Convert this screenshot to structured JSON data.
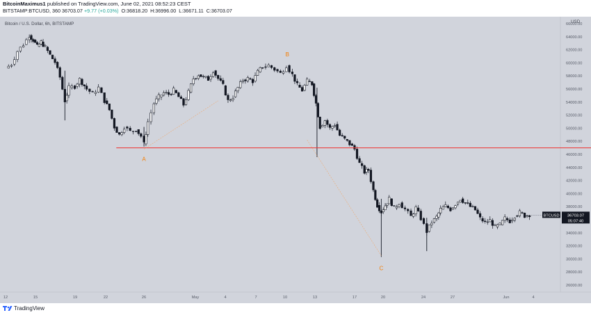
{
  "header": {
    "author": "BitcoinMaximus1",
    "publish_text": "published on TradingView.com, June 02, 2021 08:52:23 CEST",
    "symbol_line": "BITSTAMP:BTCUSD, 360",
    "last": "36703.07",
    "change": "+9.77 (+0.03%)",
    "open": "O:36818.20",
    "high": "H:36996.00",
    "low": "L:36671.11",
    "close": "C:36703.07"
  },
  "footer": {
    "brand": "TradingView"
  },
  "colors": {
    "bg": "#d1d4dc",
    "candle": "#131722",
    "support_line": "#f0312f",
    "wave_label": "#f57c00",
    "diag": "#f5a05a"
  },
  "chart_data": {
    "type": "candlestick",
    "title": "Bitcoin / U.S. Dollar, 6h, BITSTAMP",
    "ylabel": "USD",
    "ylim": [
      24500,
      68500
    ],
    "y_ticks": [
      26000,
      28000,
      30000,
      32000,
      34000,
      36000,
      38000,
      40000,
      42000,
      44000,
      46000,
      48000,
      50000,
      52000,
      54000,
      56000,
      58000,
      60000,
      62000,
      64000,
      66000
    ],
    "x_tick_labels": [
      "12",
      "15",
      "19",
      "22",
      "26",
      "May",
      "4",
      "7",
      "10",
      "13",
      "17",
      "20",
      "24",
      "27",
      "Jun",
      "4"
    ],
    "price_label": {
      "symbol": "BTCUSD",
      "price": "36703.07",
      "countdown": "05:07:40",
      "value": 36703.07
    },
    "horizontal_line": {
      "value": 47000,
      "from_day": 23.2,
      "to_day": 83.6,
      "color": "#f0312f"
    },
    "diagonals": [
      {
        "from": {
          "day": 26,
          "value": 46800
        },
        "to": {
          "day": 33.5,
          "value": 54200
        }
      },
      {
        "from": {
          "day": 42.5,
          "value": 48200
        },
        "to": {
          "day": 50,
          "value": 30500
        }
      }
    ],
    "wave_labels": [
      {
        "text": "A",
        "day": 26,
        "value": 45000
      },
      {
        "text": "B",
        "day": 40.5,
        "value": 61000
      },
      {
        "text": "C",
        "day": 50,
        "value": 28300
      }
    ],
    "path_points": [
      [
        12,
        59200
      ],
      [
        12.6,
        59800
      ],
      [
        13.2,
        61800
      ],
      [
        13.8,
        62800
      ],
      [
        14.4,
        64200
      ],
      [
        14.8,
        63500
      ],
      [
        15.2,
        62500
      ],
      [
        15.6,
        63200
      ],
      [
        16,
        62400
      ],
      [
        16.5,
        61200
      ],
      [
        17,
        60100
      ],
      [
        17.5,
        57800
      ],
      [
        18,
        54200
      ],
      [
        18.4,
        56200
      ],
      [
        19,
        56400
      ],
      [
        19.5,
        57500
      ],
      [
        20.2,
        56000
      ],
      [
        20.8,
        55300
      ],
      [
        21.4,
        56200
      ],
      [
        22,
        54200
      ],
      [
        22.5,
        52800
      ],
      [
        23,
        50200
      ],
      [
        23.5,
        49000
      ],
      [
        24,
        50200
      ],
      [
        24.6,
        49500
      ],
      [
        25.2,
        49800
      ],
      [
        25.7,
        48800
      ],
      [
        26,
        47600
      ],
      [
        26.4,
        51000
      ],
      [
        27,
        53800
      ],
      [
        27.5,
        54800
      ],
      [
        28,
        55400
      ],
      [
        28.5,
        55200
      ],
      [
        29,
        55800
      ],
      [
        29.5,
        54800
      ],
      [
        30,
        53600
      ],
      [
        30.5,
        55500
      ],
      [
        31,
        57600
      ],
      [
        31.5,
        58200
      ],
      [
        32,
        57800
      ],
      [
        32.5,
        57500
      ],
      [
        33,
        58800
      ],
      [
        33.5,
        57600
      ],
      [
        34,
        56500
      ],
      [
        34.5,
        54200
      ],
      [
        35,
        54800
      ],
      [
        35.5,
        56200
      ],
      [
        36,
        57400
      ],
      [
        36.5,
        57600
      ],
      [
        37,
        57200
      ],
      [
        37.5,
        58600
      ],
      [
        38,
        59400
      ],
      [
        38.6,
        59600
      ],
      [
        39.2,
        59000
      ],
      [
        39.8,
        58400
      ],
      [
        40.4,
        59600
      ],
      [
        41,
        58200
      ],
      [
        41.5,
        56600
      ],
      [
        42,
        55800
      ],
      [
        42.5,
        57200
      ],
      [
        43,
        56800
      ],
      [
        43.4,
        53800
      ],
      [
        43.8,
        50200
      ],
      [
        44.3,
        51200
      ],
      [
        44.8,
        50000
      ],
      [
        45.3,
        50600
      ],
      [
        45.8,
        48900
      ],
      [
        46.3,
        48300
      ],
      [
        46.8,
        47600
      ],
      [
        47.3,
        46800
      ],
      [
        47.8,
        44600
      ],
      [
        48.3,
        43300
      ],
      [
        48.7,
        43600
      ],
      [
        49.2,
        40500
      ],
      [
        49.6,
        38200
      ],
      [
        50,
        37200
      ],
      [
        50.4,
        38200
      ],
      [
        50.8,
        39200
      ],
      [
        51.3,
        37800
      ],
      [
        51.8,
        38600
      ],
      [
        52.4,
        37600
      ],
      [
        53,
        36500
      ],
      [
        53.5,
        37800
      ],
      [
        54,
        36200
      ],
      [
        54.6,
        34200
      ],
      [
        55.1,
        35600
      ],
      [
        55.6,
        36400
      ],
      [
        56,
        37600
      ],
      [
        56.5,
        38100
      ],
      [
        57,
        37600
      ],
      [
        57.5,
        38400
      ],
      [
        58,
        39200
      ],
      [
        58.5,
        38600
      ],
      [
        59,
        38000
      ],
      [
        59.5,
        37500
      ],
      [
        60,
        36200
      ],
      [
        60.5,
        35600
      ],
      [
        61,
        35900
      ],
      [
        61.5,
        34900
      ],
      [
        62,
        35200
      ],
      [
        62.5,
        36200
      ],
      [
        63,
        35800
      ],
      [
        63.5,
        36600
      ],
      [
        64,
        37100
      ],
      [
        64.5,
        36600
      ],
      [
        65,
        36800
      ]
    ],
    "special_bars": [
      {
        "day": 18,
        "high": 58800,
        "low": 51200
      },
      {
        "day": 26,
        "high": 50200,
        "low": 47200
      },
      {
        "day": 43.5,
        "high": 56200,
        "low": 45600
      },
      {
        "day": 50,
        "high": 39200,
        "low": 30300
      },
      {
        "day": 54.6,
        "high": 36300,
        "low": 31200
      }
    ]
  }
}
